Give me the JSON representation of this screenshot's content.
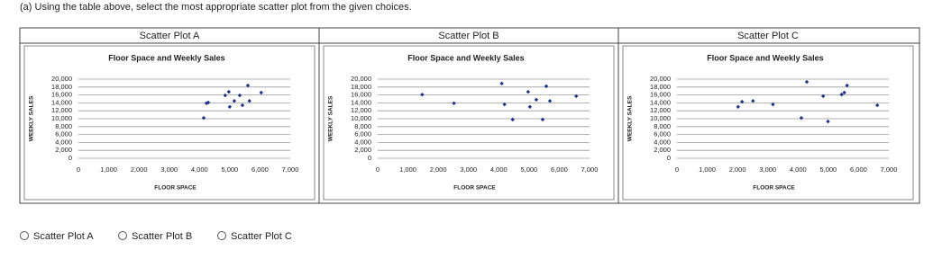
{
  "question": "(a) Using the table above, select the most appropriate scatter plot from the given choices.",
  "table": {
    "headers": [
      "Scatter Plot A",
      "Scatter Plot B",
      "Scatter Plot C"
    ]
  },
  "chart_data": [
    {
      "type": "scatter",
      "title": "Floor Space and Weekly Sales",
      "xlabel": "FLOOR SPACE",
      "ylabel": "WEEKLY SALES",
      "color": "#1f2f8f",
      "x": [
        4140,
        4230,
        4290,
        4850,
        4970,
        5000,
        5150,
        5330,
        5420,
        5600,
        5650,
        6040
      ],
      "values": [
        10200,
        13900,
        14100,
        15900,
        16800,
        13000,
        14500,
        15900,
        13400,
        18400,
        14500,
        16600
      ],
      "xlim": [
        0,
        7000
      ],
      "ylim": [
        0,
        20000
      ],
      "grid": true,
      "xticks": [
        0,
        {
          "value": 1000,
          "label": "1,000"
        },
        {
          "value": 2000,
          "label": "2,000"
        },
        {
          "value": 3000,
          "label": "3,000"
        },
        {
          "value": 4000,
          "label": "4,000"
        },
        {
          "value": 5000,
          "label": "5,000"
        },
        {
          "value": 6000,
          "label": "6,000"
        },
        {
          "value": 7000,
          "label": "7,000"
        }
      ],
      "yticks": [
        0,
        {
          "value": 2000,
          "label": "2,000"
        },
        {
          "value": 4000,
          "label": "4,000"
        },
        {
          "value": 6000,
          "label": "6,000"
        },
        {
          "value": 8000,
          "label": "8,000"
        },
        {
          "value": 10000,
          "label": "10,000"
        },
        {
          "value": 12000,
          "label": "12,000"
        },
        {
          "value": 14000,
          "label": "14,000"
        },
        {
          "value": 16000,
          "label": "16,000"
        },
        {
          "value": 18000,
          "label": "18,000"
        },
        {
          "value": 20000,
          "label": "20,000"
        }
      ]
    },
    {
      "type": "scatter",
      "title": "Floor Space and Weekly Sales",
      "xlabel": "FLOOR SPACE",
      "ylabel": "WEEKLY SALES",
      "color": "#1f2f8f",
      "x": [
        1470,
        2520,
        4100,
        4190,
        4460,
        4970,
        5030,
        5240,
        5450,
        5570,
        5690,
        6560
      ],
      "values": [
        16100,
        13900,
        18900,
        13600,
        9800,
        16800,
        13000,
        14800,
        9800,
        18200,
        14500,
        15700
      ],
      "xlim": [
        0,
        7000
      ],
      "ylim": [
        0,
        20000
      ],
      "grid": true,
      "xticks": [
        0,
        {
          "value": 1000,
          "label": "1,000"
        },
        {
          "value": 2000,
          "label": "2,000"
        },
        {
          "value": 3000,
          "label": "3,000"
        },
        {
          "value": 4000,
          "label": "4,000"
        },
        {
          "value": 5000,
          "label": "5,000"
        },
        {
          "value": 6000,
          "label": "6,000"
        },
        {
          "value": 7000,
          "label": "7,000"
        }
      ],
      "yticks": [
        0,
        {
          "value": 2000,
          "label": "2,000"
        },
        {
          "value": 4000,
          "label": "4,000"
        },
        {
          "value": 6000,
          "label": "6,000"
        },
        {
          "value": 8000,
          "label": "8,000"
        },
        {
          "value": 10000,
          "label": "10,000"
        },
        {
          "value": 12000,
          "label": "12,000"
        },
        {
          "value": 14000,
          "label": "14,000"
        },
        {
          "value": 16000,
          "label": "16,000"
        },
        {
          "value": 18000,
          "label": "18,000"
        },
        {
          "value": 20000,
          "label": "20,000"
        }
      ]
    },
    {
      "type": "scatter",
      "title": "Floor Space and Weekly Sales",
      "xlabel": "FLOOR SPACE",
      "ylabel": "WEEKLY SALES",
      "color": "#1f2f8f",
      "x": [
        2020,
        2150,
        2510,
        3170,
        4110,
        4290,
        4830,
        4990,
        5440,
        5530,
        5620,
        6620
      ],
      "values": [
        13000,
        14300,
        14500,
        13600,
        10200,
        19300,
        15700,
        9300,
        16100,
        16600,
        18400,
        13400
      ],
      "xlim": [
        0,
        7000
      ],
      "ylim": [
        0,
        20000
      ],
      "grid": true,
      "xticks": [
        0,
        {
          "value": 1000,
          "label": "1,000"
        },
        {
          "value": 2000,
          "label": "2,000"
        },
        {
          "value": 3000,
          "label": "3,000"
        },
        {
          "value": 4000,
          "label": "4,000"
        },
        {
          "value": 5000,
          "label": "5,000"
        },
        {
          "value": 6000,
          "label": "6,000"
        },
        {
          "value": 7000,
          "label": "7,000"
        }
      ],
      "yticks": [
        0,
        {
          "value": 2000,
          "label": "2,000"
        },
        {
          "value": 4000,
          "label": "4,000"
        },
        {
          "value": 6000,
          "label": "6,000"
        },
        {
          "value": 8000,
          "label": "8,000"
        },
        {
          "value": 10000,
          "label": "10,000"
        },
        {
          "value": 12000,
          "label": "12,000"
        },
        {
          "value": 14000,
          "label": "14,000"
        },
        {
          "value": 16000,
          "label": "16,000"
        },
        {
          "value": 18000,
          "label": "18,000"
        },
        {
          "value": 20000,
          "label": "20,000"
        }
      ]
    }
  ],
  "options": [
    "Scatter Plot A",
    "Scatter Plot B",
    "Scatter Plot C"
  ]
}
